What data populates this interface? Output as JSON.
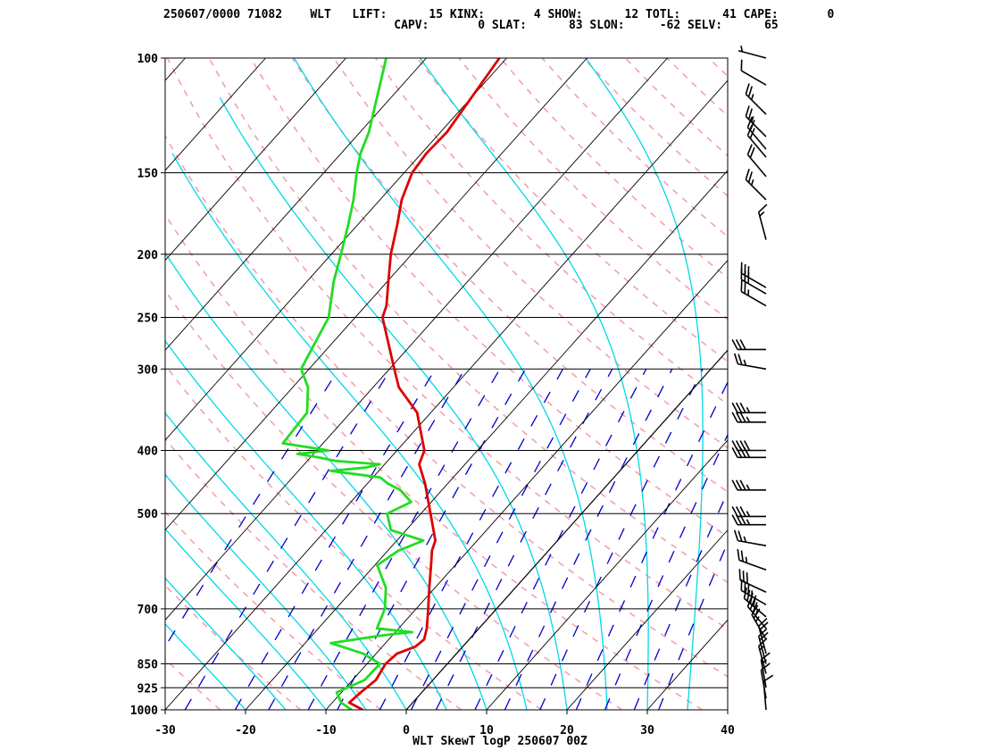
{
  "header": {
    "line1": "250607/0000 71082    WLT   LIFT:      15 KINX:       4 SHOW:      12 TOTL:      41 CAPE:       0",
    "line2": "                                 CAPV:       0 SLAT:      83 SLON:     -62 SELV:      65"
  },
  "chart_data": {
    "type": "line",
    "title": "WLT SkewT logP 250607 00Z",
    "xlabel": "",
    "ylabel": "",
    "x_scale": "skew-T temperature (C)",
    "y_scale": "log pressure (hPa)",
    "xlim": [
      -30,
      40
    ],
    "ylim": [
      1000,
      100
    ],
    "x_ticks": [
      "-30",
      "-20",
      "-10",
      "0",
      "10",
      "20",
      "30",
      "40"
    ],
    "pressure_levels": [
      {
        "p": 100,
        "label": "100"
      },
      {
        "p": 150,
        "label": "150"
      },
      {
        "p": 200,
        "label": "200"
      },
      {
        "p": 250,
        "label": "250"
      },
      {
        "p": 300,
        "label": "300"
      },
      {
        "p": 400,
        "label": "400"
      },
      {
        "p": 500,
        "label": "500"
      },
      {
        "p": 700,
        "label": "700"
      },
      {
        "p": 850,
        "label": "850"
      },
      {
        "p": 925,
        "label": "925"
      },
      {
        "p": 1000,
        "label": "1000"
      }
    ],
    "colors": {
      "temperature": "#dd0000",
      "dewpoint": "#22dd22",
      "isotherm": "#000000",
      "isobar": "#000000",
      "dry_adiabat": "#f4a0b0",
      "moist_adiabat": "#00d8e8",
      "mixing_ratio": "#0000cc",
      "wind_barb": "#000000"
    },
    "series": [
      {
        "key": "temperature",
        "points": [
          [
            1000,
            -5.4
          ],
          [
            975,
            -7.9
          ],
          [
            940,
            -7.6
          ],
          [
            900,
            -7.1
          ],
          [
            850,
            -7.7
          ],
          [
            820,
            -7.4
          ],
          [
            800,
            -5.9
          ],
          [
            780,
            -5.6
          ],
          [
            750,
            -6.5
          ],
          [
            700,
            -8.5
          ],
          [
            650,
            -10.7
          ],
          [
            600,
            -13.0
          ],
          [
            570,
            -14.5
          ],
          [
            550,
            -15.2
          ],
          [
            500,
            -18.8
          ],
          [
            450,
            -22.8
          ],
          [
            420,
            -25.7
          ],
          [
            400,
            -26.6
          ],
          [
            350,
            -31.7
          ],
          [
            320,
            -36.8
          ],
          [
            300,
            -39.4
          ],
          [
            250,
            -46.6
          ],
          [
            240,
            -47.4
          ],
          [
            220,
            -49.9
          ],
          [
            200,
            -52.6
          ],
          [
            180,
            -55.1
          ],
          [
            165,
            -57.3
          ],
          [
            150,
            -59.0
          ],
          [
            140,
            -59.4
          ],
          [
            130,
            -59.2
          ],
          [
            100,
            -60.9
          ]
        ]
      },
      {
        "key": "dewpoint",
        "points": [
          [
            1000,
            -6.8
          ],
          [
            975,
            -8.9
          ],
          [
            940,
            -10.6
          ],
          [
            900,
            -8.5
          ],
          [
            850,
            -8.4
          ],
          [
            820,
            -11.6
          ],
          [
            790,
            -16.8
          ],
          [
            770,
            -11.6
          ],
          [
            765,
            -10.0
          ],
          [
            760,
            -7.9
          ],
          [
            750,
            -12.7
          ],
          [
            700,
            -13.9
          ],
          [
            650,
            -16.1
          ],
          [
            600,
            -19.7
          ],
          [
            570,
            -18.7
          ],
          [
            550,
            -16.7
          ],
          [
            530,
            -21.9
          ],
          [
            500,
            -24.2
          ],
          [
            480,
            -22.5
          ],
          [
            460,
            -25.2
          ],
          [
            450,
            -27.4
          ],
          [
            440,
            -29.1
          ],
          [
            430,
            -36.0
          ],
          [
            425,
            -32.0
          ],
          [
            420,
            -30.6
          ],
          [
            415,
            -36.5
          ],
          [
            410,
            -39.0
          ],
          [
            405,
            -42.0
          ],
          [
            400,
            -38.5
          ],
          [
            390,
            -45.0
          ],
          [
            350,
            -45.4
          ],
          [
            320,
            -48.1
          ],
          [
            300,
            -51.0
          ],
          [
            250,
            -53.3
          ],
          [
            220,
            -56.7
          ],
          [
            200,
            -58.8
          ],
          [
            180,
            -61.2
          ],
          [
            165,
            -63.3
          ],
          [
            150,
            -65.9
          ],
          [
            140,
            -67.6
          ],
          [
            130,
            -68.9
          ],
          [
            100,
            -75.0
          ]
        ]
      }
    ],
    "wind_barbs": [
      {
        "p": 100,
        "dir": 285,
        "spd": 5
      },
      {
        "p": 110,
        "dir": 300,
        "spd": 10
      },
      {
        "p": 122,
        "dir": 315,
        "spd": 25
      },
      {
        "p": 132,
        "dir": 315,
        "spd": 25
      },
      {
        "p": 138,
        "dir": 320,
        "spd": 20
      },
      {
        "p": 142,
        "dir": 320,
        "spd": 20
      },
      {
        "p": 152,
        "dir": 320,
        "spd": 20
      },
      {
        "p": 165,
        "dir": 315,
        "spd": 25
      },
      {
        "p": 190,
        "dir": 345,
        "spd": 15
      },
      {
        "p": 225,
        "dir": 300,
        "spd": 30
      },
      {
        "p": 230,
        "dir": 300,
        "spd": 30
      },
      {
        "p": 240,
        "dir": 300,
        "spd": 25
      },
      {
        "p": 280,
        "dir": 270,
        "spd": 30
      },
      {
        "p": 300,
        "dir": 280,
        "spd": 25
      },
      {
        "p": 350,
        "dir": 270,
        "spd": 35
      },
      {
        "p": 362,
        "dir": 270,
        "spd": 35
      },
      {
        "p": 400,
        "dir": 270,
        "spd": 40
      },
      {
        "p": 410,
        "dir": 270,
        "spd": 40
      },
      {
        "p": 460,
        "dir": 270,
        "spd": 35
      },
      {
        "p": 505,
        "dir": 270,
        "spd": 35
      },
      {
        "p": 520,
        "dir": 270,
        "spd": 35
      },
      {
        "p": 560,
        "dir": 280,
        "spd": 25
      },
      {
        "p": 610,
        "dir": 290,
        "spd": 25
      },
      {
        "p": 660,
        "dir": 295,
        "spd": 30
      },
      {
        "p": 690,
        "dir": 300,
        "spd": 35
      },
      {
        "p": 720,
        "dir": 310,
        "spd": 40
      },
      {
        "p": 750,
        "dir": 320,
        "spd": 35
      },
      {
        "p": 780,
        "dir": 330,
        "spd": 25
      },
      {
        "p": 820,
        "dir": 345,
        "spd": 20
      },
      {
        "p": 850,
        "dir": 345,
        "spd": 20
      },
      {
        "p": 880,
        "dir": 345,
        "spd": 15
      },
      {
        "p": 925,
        "dir": 350,
        "spd": 15
      },
      {
        "p": 960,
        "dir": 350,
        "spd": 10
      },
      {
        "p": 1000,
        "dir": 355,
        "spd": 10
      }
    ]
  }
}
